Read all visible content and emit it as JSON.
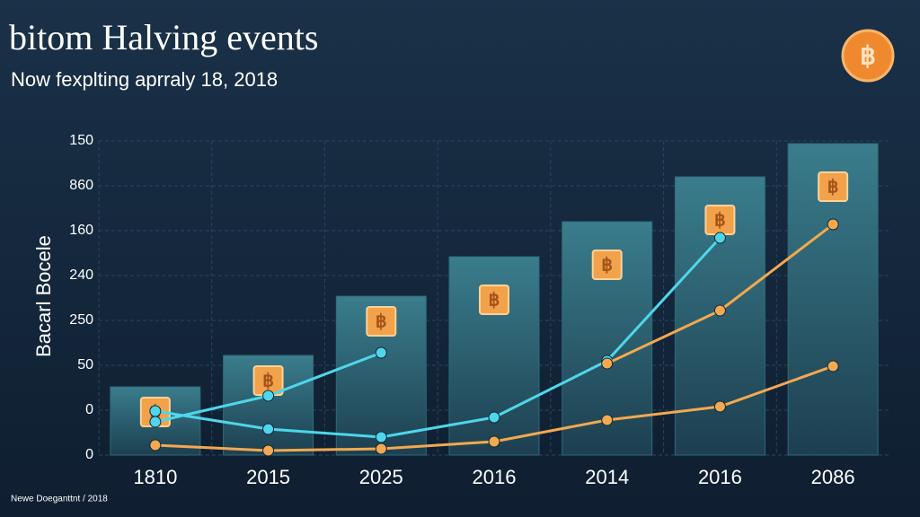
{
  "chart_data": {
    "type": "bar",
    "title": "bitom Halving events",
    "subtitle": "Now fexplting aprraly 18, 2018",
    "y_label": "Bacarl Bocele",
    "footer": "Newe Doeganttnt / 2018",
    "categories": [
      "1810",
      "2015",
      "2025",
      "2016",
      "2014",
      "2016",
      "2086"
    ],
    "values": [
      1.52,
      2.22,
      3.54,
      4.42,
      5.2,
      6.2,
      6.94
    ],
    "color": "#2f6a7a",
    "ylim": [
      0,
      7
    ],
    "yticks": [
      0,
      1,
      2,
      3,
      4,
      5,
      6,
      7
    ],
    "ytick_labels": [
      "0",
      "0",
      "50",
      "250",
      "240",
      "160",
      "860",
      "150"
    ],
    "grid": true,
    "lines": [
      {
        "color": "#4fd6ea",
        "values": [
          0.74,
          1.32,
          2.28,
          null,
          null,
          null,
          null
        ]
      },
      {
        "color": "#4fd6ea",
        "values": [
          0.98,
          0.58,
          0.4,
          0.84,
          2.1,
          4.84,
          null
        ]
      },
      {
        "color": "#f2a950",
        "values": [
          null,
          null,
          null,
          null,
          2.04,
          3.22,
          5.14
        ]
      },
      {
        "color": "#f2a950",
        "values": [
          0.22,
          0.1,
          0.14,
          0.3,
          0.78,
          1.08,
          1.98
        ]
      }
    ]
  }
}
